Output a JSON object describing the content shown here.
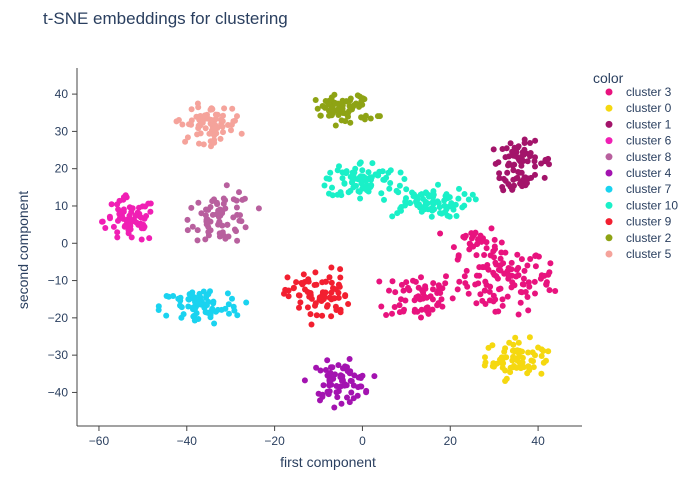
{
  "chart_data": {
    "type": "scatter",
    "title": "t-SNE embeddings for clustering",
    "xlabel": "first component",
    "ylabel": "second component",
    "xlim": [
      -65,
      50
    ],
    "ylim": [
      -49,
      47
    ],
    "xticks": [
      -60,
      -40,
      -20,
      0,
      20,
      40
    ],
    "yticks": [
      40,
      30,
      20,
      10,
      0,
      -10,
      -20,
      -30,
      -40
    ],
    "tick_labels_x": [
      "−60",
      "−40",
      "−20",
      "0",
      "20",
      "40"
    ],
    "tick_labels_y": [
      "40",
      "30",
      "20",
      "10",
      "0",
      "−10",
      "−20",
      "−30",
      "−40"
    ],
    "grid": false,
    "legend_title": "color",
    "legend_position": "right",
    "series": [
      {
        "name": "cluster 3",
        "color": "#e8137e",
        "approx_points": 200,
        "regions": [
          {
            "cx": 32,
            "cy": -10,
            "rx": 10,
            "ry": 9
          },
          {
            "cx": 13,
            "cy": -14,
            "rx": 8,
            "ry": 7
          },
          {
            "cx": 25,
            "cy": 1,
            "rx": 6,
            "ry": 4
          },
          {
            "cx": 42,
            "cy": -10,
            "rx": 2,
            "ry": 4
          }
        ]
      },
      {
        "name": "cluster 0",
        "color": "#f5d810",
        "approx_points": 70,
        "regions": [
          {
            "cx": 35,
            "cy": -31,
            "rx": 7,
            "ry": 5
          }
        ]
      },
      {
        "name": "cluster 1",
        "color": "#a3146a",
        "approx_points": 80,
        "regions": [
          {
            "cx": 36,
            "cy": 22,
            "rx": 7,
            "ry": 5
          },
          {
            "cx": 35,
            "cy": 16,
            "rx": 4,
            "ry": 3
          }
        ]
      },
      {
        "name": "cluster 6",
        "color": "#f01fb4",
        "approx_points": 70,
        "regions": [
          {
            "cx": -53,
            "cy": 6,
            "rx": 6,
            "ry": 6
          }
        ]
      },
      {
        "name": "cluster 8",
        "color": "#b8609e",
        "approx_points": 70,
        "regions": [
          {
            "cx": -32,
            "cy": 7,
            "rx": 7,
            "ry": 7
          }
        ]
      },
      {
        "name": "cluster 4",
        "color": "#a313b0",
        "approx_points": 75,
        "regions": [
          {
            "cx": -5,
            "cy": -37,
            "rx": 7,
            "ry": 5
          }
        ]
      },
      {
        "name": "cluster 7",
        "color": "#1ad3f0",
        "approx_points": 75,
        "regions": [
          {
            "cx": -37,
            "cy": -17,
            "rx": 9,
            "ry": 5
          }
        ]
      },
      {
        "name": "cluster 10",
        "color": "#1af0c8",
        "approx_points": 160,
        "regions": [
          {
            "cx": 0,
            "cy": 17,
            "rx": 8,
            "ry": 5
          },
          {
            "cx": 14,
            "cy": 11,
            "rx": 10,
            "ry": 4
          }
        ]
      },
      {
        "name": "cluster 9",
        "color": "#f21f30",
        "approx_points": 75,
        "regions": [
          {
            "cx": -10,
            "cy": -14,
            "rx": 7,
            "ry": 7
          }
        ]
      },
      {
        "name": "cluster 2",
        "color": "#8ea314",
        "approx_points": 70,
        "regions": [
          {
            "cx": -4,
            "cy": 36,
            "rx": 7,
            "ry": 4
          }
        ]
      },
      {
        "name": "cluster 5",
        "color": "#f5a39b",
        "approx_points": 75,
        "regions": [
          {
            "cx": -35,
            "cy": 32,
            "rx": 7,
            "ry": 5
          }
        ]
      }
    ]
  }
}
